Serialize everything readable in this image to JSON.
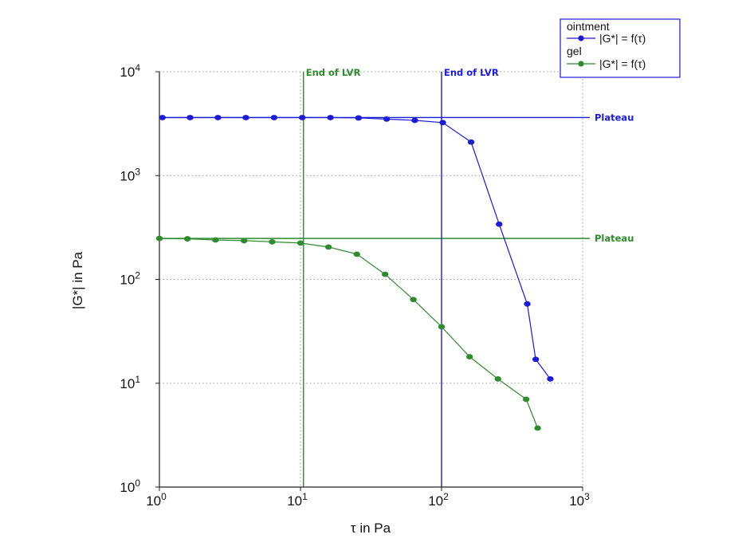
{
  "chart_data": {
    "type": "line",
    "xlabel": "τ in Pa",
    "ylabel": "|G*| in Pa",
    "x_scale": "log",
    "y_scale": "log",
    "xlim": [
      1,
      1000
    ],
    "ylim": [
      1,
      10000
    ],
    "grid": true,
    "legend_position": "top-right",
    "x_ticks": [
      {
        "base": "10",
        "exp": "0",
        "value": 1
      },
      {
        "base": "10",
        "exp": "1",
        "value": 10
      },
      {
        "base": "10",
        "exp": "2",
        "value": 100
      },
      {
        "base": "10",
        "exp": "3",
        "value": 1000
      }
    ],
    "y_ticks": [
      {
        "base": "10",
        "exp": "0",
        "value": 1
      },
      {
        "base": "10",
        "exp": "1",
        "value": 10
      },
      {
        "base": "10",
        "exp": "2",
        "value": 100
      },
      {
        "base": "10",
        "exp": "3",
        "value": 1000
      },
      {
        "base": "10",
        "exp": "4",
        "value": 10000
      }
    ],
    "series": [
      {
        "group": "ointment",
        "name": "|G*| = f(τ)",
        "color": "#1a1adb",
        "x": [
          1.05,
          1.65,
          2.6,
          4.1,
          6.5,
          10.3,
          16.3,
          25.8,
          40.8,
          64.6,
          102,
          162,
          256,
          405,
          465,
          590
        ],
        "y": [
          3620,
          3620,
          3620,
          3620,
          3620,
          3620,
          3620,
          3590,
          3500,
          3400,
          3240,
          2100,
          340,
          58,
          17,
          11
        ]
      },
      {
        "group": "gel",
        "name": "|G*| = f(τ)",
        "color": "#2e8b2e",
        "x": [
          1.0,
          1.58,
          2.5,
          3.98,
          6.3,
          10.0,
          15.8,
          25.1,
          39.8,
          63.1,
          100,
          158,
          251,
          398,
          480
        ],
        "y": [
          248,
          246,
          240,
          236,
          230,
          224,
          205,
          175,
          112,
          64,
          35,
          18,
          11,
          7,
          3.7
        ]
      }
    ],
    "reference_lines": [
      {
        "orientation": "horizontal",
        "value": 3620,
        "label": "Plateau",
        "color": "#1a1adb"
      },
      {
        "orientation": "horizontal",
        "value": 248,
        "label": "Plateau",
        "color": "#2e8b2e"
      },
      {
        "orientation": "vertical",
        "value": 10.5,
        "label": "End of LVR",
        "color": "#2e8b2e"
      },
      {
        "orientation": "vertical",
        "value": 100,
        "label": "End of LVR",
        "color": "#1a1adb"
      }
    ]
  }
}
